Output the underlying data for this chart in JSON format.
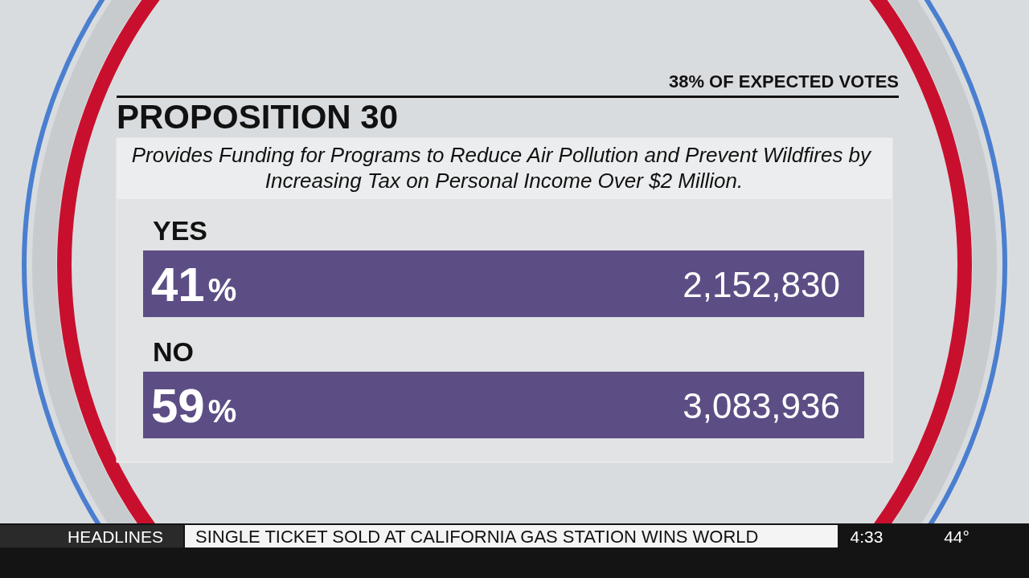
{
  "chart_data": {
    "type": "other",
    "title": "PROPOSITION 30",
    "subtitle": "Provides Funding for Programs to Reduce Air Pollution and Prevent Wildfires by Increasing Tax on Personal Income Over $2 Million.",
    "categories": [
      "YES",
      "NO"
    ],
    "series": [
      {
        "color": "#5c4e85",
        "values": [
          41,
          59
        ],
        "value_labels": [
          "41%",
          "59%"
        ]
      },
      {
        "values": [
          2152830,
          3083936
        ],
        "value_labels": [
          "2,152,830",
          "3,083,936"
        ]
      }
    ],
    "annotations": [
      "38% OF EXPECTED VOTES",
      "HEADLINES",
      "SINGLE TICKET SOLD AT CALIFORNIA GAS STATION WINS WORLD",
      "4:33",
      "44°"
    ]
  }
}
